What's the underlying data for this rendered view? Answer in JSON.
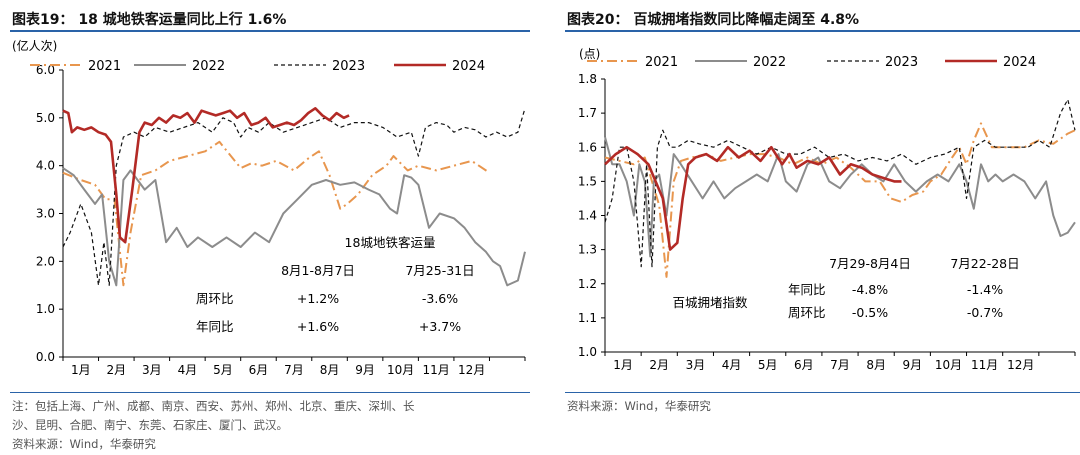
{
  "chart_data": [
    {
      "type": "line",
      "title": "图表19： 18 城地铁客运量同比上行 1.6%",
      "ylabel": "(亿人次)",
      "ylim": [
        0,
        6
      ],
      "yticks": [
        "0.0",
        "1.0",
        "2.0",
        "3.0",
        "4.0",
        "5.0",
        "6.0"
      ],
      "xticks": [
        "1月",
        "2月",
        "3月",
        "4月",
        "5月",
        "6月",
        "7月",
        "8月",
        "9月",
        "10月",
        "11月",
        "12月"
      ],
      "colors": {
        "2021": "#e8964e",
        "2022": "#8c8c8c",
        "2023": "#111111",
        "2024": "#b32a26"
      },
      "series": [
        {
          "name": "2021",
          "style": "dashdot",
          "x": [
            0,
            0.5,
            0.9,
            1.2,
            1.45,
            1.7,
            1.9,
            2.2,
            2.6,
            3.0,
            3.5,
            4.0,
            4.4,
            5.0,
            5.3,
            5.6,
            6.0,
            6.5,
            6.9,
            7.2,
            7.5,
            7.8,
            8.0,
            8.3,
            8.7,
            9.1,
            9.3,
            9.7,
            10.0,
            10.5,
            11.0,
            11.5,
            12.0
          ],
          "y": [
            3.85,
            3.7,
            3.6,
            3.3,
            3.3,
            1.5,
            2.6,
            3.8,
            3.9,
            4.1,
            4.2,
            4.3,
            4.5,
            3.95,
            4.05,
            4.0,
            4.1,
            3.9,
            4.15,
            4.3,
            3.8,
            3.1,
            3.2,
            3.4,
            3.8,
            4.0,
            4.2,
            3.9,
            4.0,
            3.9,
            4.0,
            4.1,
            3.85
          ]
        },
        {
          "name": "2022",
          "style": "solid",
          "x": [
            0,
            0.3,
            0.6,
            0.9,
            1.1,
            1.3,
            1.5,
            1.7,
            1.9,
            2.1,
            2.3,
            2.6,
            2.9,
            3.2,
            3.5,
            3.8,
            4.2,
            4.6,
            5.0,
            5.4,
            5.8,
            6.2,
            6.6,
            7.0,
            7.4,
            7.8,
            8.2,
            8.6,
            8.9,
            9.2,
            9.4,
            9.6,
            9.8,
            10.0,
            10.3,
            10.6,
            11.0,
            11.3,
            11.6,
            11.9,
            12.1,
            12.3,
            12.5,
            12.8,
            13.0
          ],
          "y": [
            3.95,
            3.8,
            3.5,
            3.2,
            3.4,
            2.0,
            1.5,
            3.7,
            3.9,
            3.7,
            3.5,
            3.7,
            2.4,
            2.7,
            2.3,
            2.5,
            2.3,
            2.5,
            2.3,
            2.6,
            2.4,
            3.0,
            3.3,
            3.6,
            3.7,
            3.6,
            3.65,
            3.5,
            3.4,
            3.1,
            3.0,
            3.8,
            3.75,
            3.6,
            2.7,
            3.0,
            2.9,
            2.7,
            2.4,
            2.2,
            2.0,
            1.9,
            1.5,
            1.6,
            2.2
          ]
        },
        {
          "name": "2023",
          "style": "dashed",
          "x": [
            0,
            0.2,
            0.5,
            0.8,
            1.0,
            1.15,
            1.3,
            1.5,
            1.7,
            2.0,
            2.3,
            2.6,
            3.0,
            3.4,
            3.8,
            4.2,
            4.5,
            4.8,
            5.0,
            5.2,
            5.5,
            5.8,
            6.2,
            6.6,
            7.0,
            7.4,
            7.8,
            8.2,
            8.6,
            9.0,
            9.4,
            9.8,
            10.0,
            10.2,
            10.5,
            10.8,
            11.0,
            11.3,
            11.6,
            11.9,
            12.2,
            12.5,
            12.8,
            13.0
          ],
          "y": [
            2.3,
            2.6,
            3.2,
            2.6,
            1.5,
            2.4,
            1.5,
            4.0,
            4.6,
            4.7,
            4.6,
            4.8,
            4.7,
            4.8,
            4.9,
            4.7,
            5.0,
            4.9,
            4.6,
            4.8,
            4.7,
            4.9,
            4.7,
            4.8,
            4.9,
            5.0,
            4.8,
            4.9,
            4.9,
            4.8,
            4.6,
            4.7,
            4.2,
            4.8,
            4.9,
            4.85,
            4.7,
            4.8,
            4.75,
            4.6,
            4.7,
            4.6,
            4.7,
            5.2
          ]
        },
        {
          "name": "2024",
          "style": "solid-bold",
          "x": [
            0,
            0.15,
            0.25,
            0.4,
            0.6,
            0.8,
            1.0,
            1.2,
            1.35,
            1.5,
            1.6,
            1.75,
            1.95,
            2.15,
            2.3,
            2.5,
            2.7,
            2.9,
            3.1,
            3.3,
            3.5,
            3.7,
            3.9,
            4.1,
            4.3,
            4.5,
            4.7,
            4.9,
            5.1,
            5.3,
            5.5,
            5.7,
            5.9,
            6.1,
            6.3,
            6.5,
            6.7,
            6.9,
            7.1,
            7.3,
            7.5,
            7.7,
            7.9,
            8.05
          ],
          "y": [
            5.15,
            5.1,
            4.7,
            4.8,
            4.75,
            4.8,
            4.7,
            4.65,
            4.5,
            3.4,
            2.5,
            2.4,
            3.5,
            4.7,
            4.9,
            4.85,
            5.0,
            4.9,
            5.05,
            5.0,
            5.1,
            4.9,
            5.15,
            5.1,
            5.05,
            5.1,
            5.15,
            5.0,
            5.1,
            4.85,
            4.9,
            5.0,
            4.8,
            4.85,
            4.9,
            4.85,
            4.95,
            5.1,
            5.2,
            5.05,
            4.95,
            5.1,
            5.0,
            5.05
          ]
        }
      ],
      "annotation": {
        "heading": "18城地铁客运量",
        "col1": "8月1-8月7日",
        "col2": "7月25-31日",
        "row1_label": "周环比",
        "row1_v1": "+1.2%",
        "row1_v2": "-3.6%",
        "row2_label": "年同比",
        "row2_v1": "+1.6%",
        "row2_v2": "+3.7%"
      }
    },
    {
      "type": "line",
      "title": "图表20： 百城拥堵指数同比降幅走阔至 4.8%",
      "ylabel": "(点)",
      "ylim": [
        1.0,
        1.8
      ],
      "yticks": [
        "1.0",
        "1.1",
        "1.2",
        "1.3",
        "1.4",
        "1.5",
        "1.6",
        "1.7",
        "1.8"
      ],
      "xticks": [
        "1月",
        "2月",
        "3月",
        "4月",
        "5月",
        "6月",
        "7月",
        "8月",
        "9月",
        "10月",
        "11月",
        "12月"
      ],
      "colors": {
        "2021": "#e8964e",
        "2022": "#8c8c8c",
        "2023": "#111111",
        "2024": "#b32a26"
      },
      "series": [
        {
          "name": "2021",
          "style": "dashdot",
          "x": [
            0,
            0.4,
            0.8,
            1.1,
            1.3,
            1.5,
            1.7,
            1.9,
            2.1,
            2.4,
            2.8,
            3.2,
            3.6,
            4.0,
            4.4,
            4.8,
            5.2,
            5.6,
            6.0,
            6.4,
            6.8,
            7.2,
            7.6,
            7.9,
            8.2,
            8.5,
            8.8,
            9.0,
            9.3,
            9.6,
            9.8,
            10.0,
            10.2,
            10.4,
            10.7,
            11.0,
            11.3,
            11.6,
            12.0,
            12.4,
            12.8,
            13.0
          ],
          "y": [
            1.57,
            1.56,
            1.55,
            1.57,
            1.5,
            1.43,
            1.22,
            1.5,
            1.56,
            1.57,
            1.58,
            1.56,
            1.57,
            1.58,
            1.58,
            1.57,
            1.55,
            1.57,
            1.55,
            1.57,
            1.54,
            1.5,
            1.5,
            1.45,
            1.44,
            1.46,
            1.47,
            1.5,
            1.52,
            1.57,
            1.6,
            1.55,
            1.62,
            1.67,
            1.6,
            1.6,
            1.6,
            1.6,
            1.62,
            1.61,
            1.64,
            1.65
          ]
        },
        {
          "name": "2022",
          "style": "solid",
          "x": [
            0,
            0.2,
            0.4,
            0.6,
            0.8,
            0.95,
            1.1,
            1.25,
            1.35,
            1.5,
            1.7,
            1.9,
            2.1,
            2.4,
            2.7,
            3.0,
            3.3,
            3.6,
            3.9,
            4.2,
            4.5,
            4.8,
            5.0,
            5.3,
            5.6,
            5.9,
            6.2,
            6.5,
            6.8,
            7.1,
            7.4,
            7.7,
            8.0,
            8.3,
            8.6,
            8.9,
            9.2,
            9.5,
            9.8,
            10.0,
            10.2,
            10.4,
            10.6,
            10.8,
            11.0,
            11.3,
            11.6,
            11.9,
            12.2,
            12.4,
            12.6,
            12.8,
            13.0
          ],
          "y": [
            1.63,
            1.55,
            1.55,
            1.5,
            1.4,
            1.55,
            1.5,
            1.28,
            1.5,
            1.52,
            1.4,
            1.58,
            1.55,
            1.5,
            1.45,
            1.5,
            1.45,
            1.48,
            1.5,
            1.52,
            1.5,
            1.58,
            1.5,
            1.47,
            1.55,
            1.57,
            1.5,
            1.48,
            1.52,
            1.55,
            1.52,
            1.5,
            1.55,
            1.5,
            1.47,
            1.5,
            1.52,
            1.5,
            1.55,
            1.5,
            1.42,
            1.55,
            1.5,
            1.52,
            1.5,
            1.52,
            1.5,
            1.45,
            1.5,
            1.4,
            1.34,
            1.35,
            1.38
          ]
        },
        {
          "name": "2023",
          "style": "dashed",
          "x": [
            0,
            0.2,
            0.4,
            0.6,
            0.8,
            1.0,
            1.15,
            1.3,
            1.45,
            1.6,
            1.8,
            2.0,
            2.3,
            2.6,
            3.0,
            3.4,
            3.8,
            4.2,
            4.6,
            5.0,
            5.4,
            5.8,
            6.2,
            6.6,
            7.0,
            7.4,
            7.8,
            8.2,
            8.6,
            9.0,
            9.4,
            9.8,
            10.0,
            10.2,
            10.5,
            10.8,
            11.1,
            11.4,
            11.7,
            12.0,
            12.3,
            12.6,
            12.8,
            13.0
          ],
          "y": [
            1.38,
            1.45,
            1.6,
            1.6,
            1.5,
            1.25,
            1.55,
            1.25,
            1.6,
            1.65,
            1.6,
            1.6,
            1.62,
            1.61,
            1.6,
            1.62,
            1.6,
            1.58,
            1.6,
            1.58,
            1.58,
            1.6,
            1.57,
            1.58,
            1.56,
            1.57,
            1.56,
            1.58,
            1.55,
            1.57,
            1.58,
            1.6,
            1.45,
            1.6,
            1.62,
            1.6,
            1.6,
            1.6,
            1.6,
            1.62,
            1.6,
            1.7,
            1.74,
            1.65
          ]
        },
        {
          "name": "2024",
          "style": "solid-bold",
          "x": [
            0,
            0.3,
            0.6,
            0.9,
            1.2,
            1.4,
            1.6,
            1.8,
            2.0,
            2.15,
            2.3,
            2.5,
            2.8,
            3.1,
            3.4,
            3.7,
            4.0,
            4.3,
            4.6,
            4.9,
            5.1,
            5.3,
            5.6,
            5.9,
            6.2,
            6.5,
            6.8,
            7.1,
            7.4,
            7.7,
            8.0,
            8.2
          ],
          "y": [
            1.55,
            1.58,
            1.6,
            1.58,
            1.55,
            1.5,
            1.45,
            1.3,
            1.32,
            1.45,
            1.55,
            1.57,
            1.58,
            1.56,
            1.6,
            1.57,
            1.59,
            1.56,
            1.6,
            1.55,
            1.58,
            1.54,
            1.56,
            1.55,
            1.57,
            1.52,
            1.55,
            1.54,
            1.52,
            1.51,
            1.5,
            1.5
          ]
        }
      ],
      "annotation": {
        "col1": "7月29-8月4日",
        "col2": "7月22-28日",
        "heading": "百城拥堵指数",
        "row1_label": "年同比",
        "row1_v1": "-4.8%",
        "row1_v2": "-1.4%",
        "row2_label": "周环比",
        "row2_v1": "-0.5%",
        "row2_v2": "-0.7%"
      }
    }
  ],
  "notes": {
    "left_note_line1": "注：包括上海、广州、成都、南京、西安、苏州、郑州、北京、重庆、深圳、长",
    "left_note_line2": "沙、昆明、合肥、南宁、东莞、石家庄、厦门、武汉。",
    "left_source": "资料来源：Wind，华泰研究",
    "right_source": "资料来源：Wind，华泰研究"
  }
}
